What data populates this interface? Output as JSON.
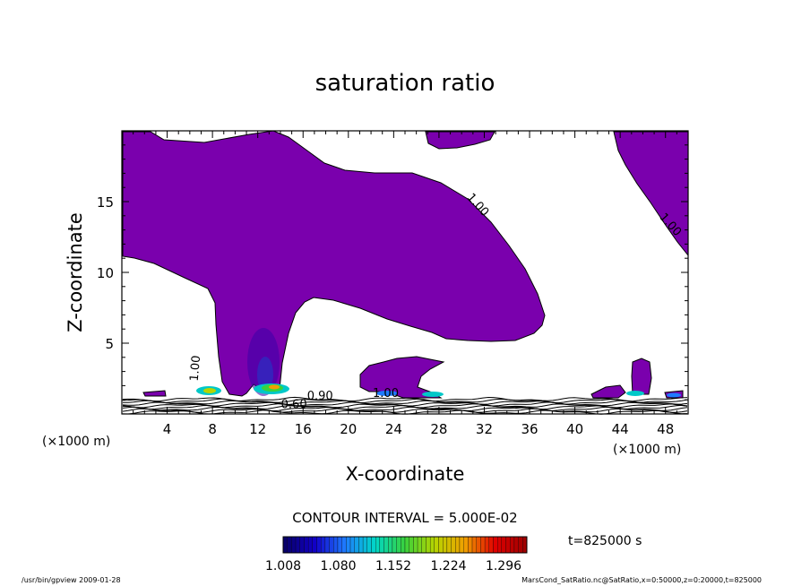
{
  "chart_data": {
    "type": "contour",
    "title": "saturation ratio",
    "xlabel": "X-coordinate",
    "ylabel": "Z-coordinate",
    "x_unit_left": "(×1000 m)",
    "x_unit_right": "(×1000 m)",
    "xlim": [
      0,
      50
    ],
    "ylim": [
      0,
      20
    ],
    "x_ticks": [
      4,
      8,
      12,
      16,
      20,
      24,
      28,
      32,
      36,
      40,
      44,
      48
    ],
    "y_ticks": [
      5,
      10,
      15
    ],
    "contour_interval_text": "CONTOUR INTERVAL = 5.000E-02",
    "time_text": "t=825000 s",
    "colorbar_ticks": [
      "1.008",
      "1.080",
      "1.152",
      "1.224",
      "1.296"
    ],
    "colorbar_range": [
      1.008,
      1.296
    ],
    "contour_labels": [
      {
        "text": "1.00",
        "x": 31.2,
        "y": 14.6,
        "angle": 48
      },
      {
        "text": "1.00",
        "x": 48.2,
        "y": 13.2,
        "angle": 48
      },
      {
        "text": "1.00",
        "x": 6.8,
        "y": 3.2,
        "angle": -85
      },
      {
        "text": "0.90",
        "x": 17.5,
        "y": 1.0,
        "angle": 0
      },
      {
        "text": "0.60",
        "x": 15.2,
        "y": 0.4,
        "angle": 0
      },
      {
        "text": "1.00",
        "x": 23.3,
        "y": 1.2,
        "angle": 0
      }
    ],
    "grid": false,
    "colors": {
      "saturated_fill": "#7a00ad",
      "colormap": [
        "#08006b",
        "#1200c8",
        "#1e7bff",
        "#00d7c8",
        "#39d23c",
        "#b7d400",
        "#f0a000",
        "#e00000",
        "#a00000"
      ]
    }
  },
  "footer": {
    "left": "/usr/bin/gpview   2009-01-28",
    "right": "MarsCond_SatRatio.nc@SatRatio,x=0:50000,z=0:20000,t=825000"
  }
}
